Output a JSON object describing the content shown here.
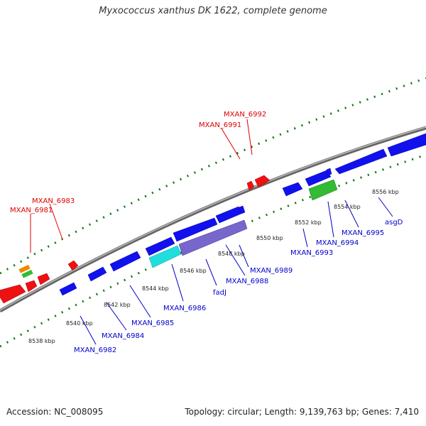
{
  "title": "Myxococcus xanthus DK 1622, complete genome",
  "footer": {
    "accession": "Accession: NC_008095",
    "topology": "Topology: circular; Length: 9,139,763 bp; Genes: 7,410"
  },
  "colors": {
    "backbone": "#888888",
    "tick_green": "#117711",
    "plus_strand": "#ee1111",
    "minus_strand": "#1111ee",
    "label_plus": "#dd0000",
    "label_minus": "#0000cc",
    "feature_cyan": "#22dddd",
    "feature_purple": "#7766cc",
    "feature_green": "#33bb33",
    "feature_orange": "#ee8800"
  },
  "scale_labels": [
    "8538 kbp",
    "8540 kbp",
    "8542 kbp",
    "8544 kbp",
    "8546 kbp",
    "8548 kbp",
    "8550 kbp",
    "8552 kbp",
    "8554 kbp",
    "8556 kbp"
  ],
  "gene_labels_plus": [
    "MXAN_6981",
    "MXAN_6983",
    "MXAN_6991",
    "MXAN_6992"
  ],
  "gene_labels_minus": [
    "MXAN_6982",
    "MXAN_6984",
    "MXAN_6985",
    "MXAN_6986",
    "fadJ",
    "MXAN_6988",
    "MXAN_6989",
    "MXAN_6993",
    "MXAN_6994",
    "MXAN_6995",
    "asgD"
  ]
}
